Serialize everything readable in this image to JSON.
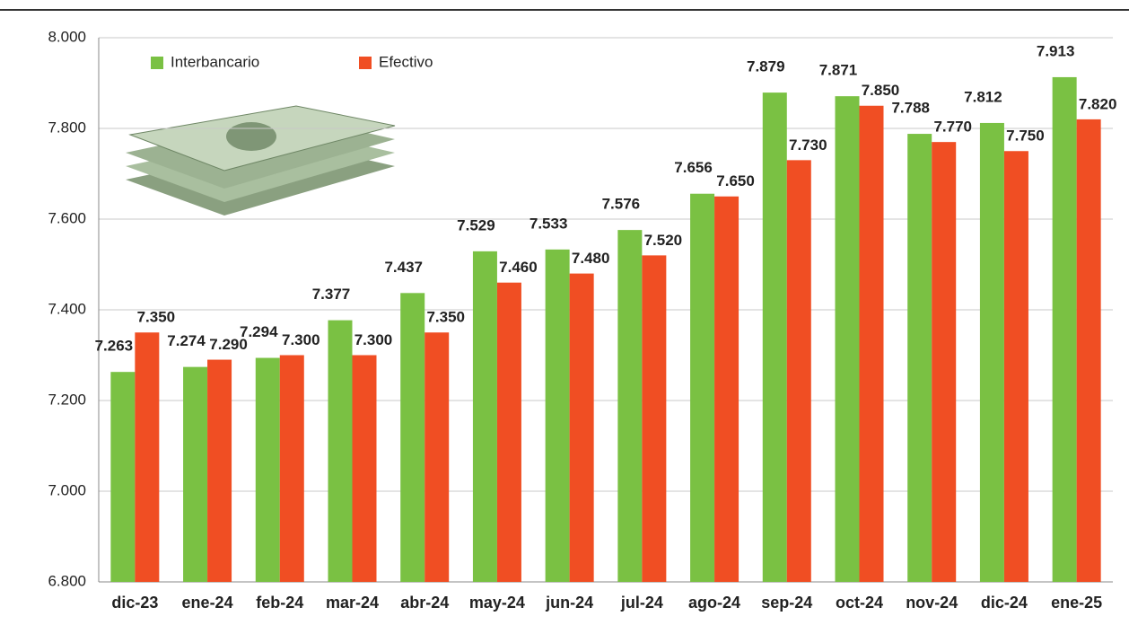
{
  "chart_data": {
    "type": "bar",
    "categories": [
      "dic-23",
      "ene-24",
      "feb-24",
      "mar-24",
      "abr-24",
      "may-24",
      "jun-24",
      "jul-24",
      "ago-24",
      "sep-24",
      "oct-24",
      "nov-24",
      "dic-24",
      "ene-25"
    ],
    "series": [
      {
        "name": "Interbancario",
        "color": "#7ac143",
        "values": [
          7263,
          7274,
          7294,
          7377,
          7437,
          7529,
          7533,
          7576,
          7656,
          7879,
          7871,
          7788,
          7812,
          7913
        ],
        "value_labels": [
          "7.263",
          "7.274",
          "7.294",
          "7.377",
          "7.437",
          "7.529",
          "7.533",
          "7.576",
          "7.656",
          "7.879",
          "7.871",
          "7.788",
          "7.812",
          "7.913"
        ]
      },
      {
        "name": "Efectivo",
        "color": "#f04e23",
        "values": [
          7350,
          7290,
          7300,
          7300,
          7350,
          7460,
          7480,
          7520,
          7650,
          7730,
          7850,
          7770,
          7750,
          7820
        ],
        "value_labels": [
          "7.350",
          "7.290",
          "7.300",
          "7.300",
          "7.350",
          "7.460",
          "7.480",
          "7.520",
          "7.650",
          "7.730",
          "7.850",
          "7.770",
          "7.750",
          "7.820"
        ]
      }
    ],
    "ylim": [
      6800,
      8000
    ],
    "yticks": [
      {
        "value": 6800,
        "label": "6.800"
      },
      {
        "value": 7000,
        "label": "7.000"
      },
      {
        "value": 7200,
        "label": "7.200"
      },
      {
        "value": 7400,
        "label": "7.400"
      },
      {
        "value": 7600,
        "label": "7.600"
      },
      {
        "value": 7800,
        "label": "7.800"
      },
      {
        "value": 8000,
        "label": "8.000"
      }
    ],
    "grid": true,
    "legend": "top-left"
  }
}
